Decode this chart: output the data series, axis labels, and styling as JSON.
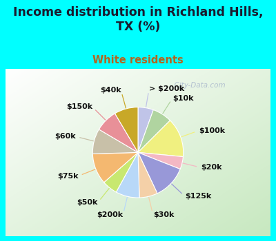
{
  "title": "Income distribution in Richland Hills,\nTX (%)",
  "subtitle": "White residents",
  "title_color": "#1a1a2e",
  "subtitle_color": "#b5651d",
  "background_color": "#00ffff",
  "labels": [
    "> $200k",
    "$10k",
    "$100k",
    "$20k",
    "$125k",
    "$30k",
    "$200k",
    "$50k",
    "$75k",
    "$60k",
    "$150k",
    "$40k"
  ],
  "values": [
    5.5,
    7.0,
    14.0,
    4.5,
    12.0,
    6.5,
    8.5,
    5.5,
    11.0,
    9.0,
    8.0,
    8.5
  ],
  "colors": [
    "#c0c4e8",
    "#b0d4a0",
    "#f0f080",
    "#f4b8c4",
    "#9898d8",
    "#f4d0a8",
    "#b8d8f8",
    "#c8e870",
    "#f4b870",
    "#c8c0a8",
    "#e89098",
    "#c8a828"
  ],
  "line_colors": [
    "#c0c4e8",
    "#b0d4a0",
    "#f0f080",
    "#f4b8c4",
    "#9898d8",
    "#f4d0a8",
    "#b8d8f8",
    "#c8e870",
    "#f4b870",
    "#c8c0a8",
    "#e89098",
    "#c8a828"
  ],
  "label_fontsize": 8.0,
  "title_fontsize": 12.5,
  "subtitle_fontsize": 10.5
}
